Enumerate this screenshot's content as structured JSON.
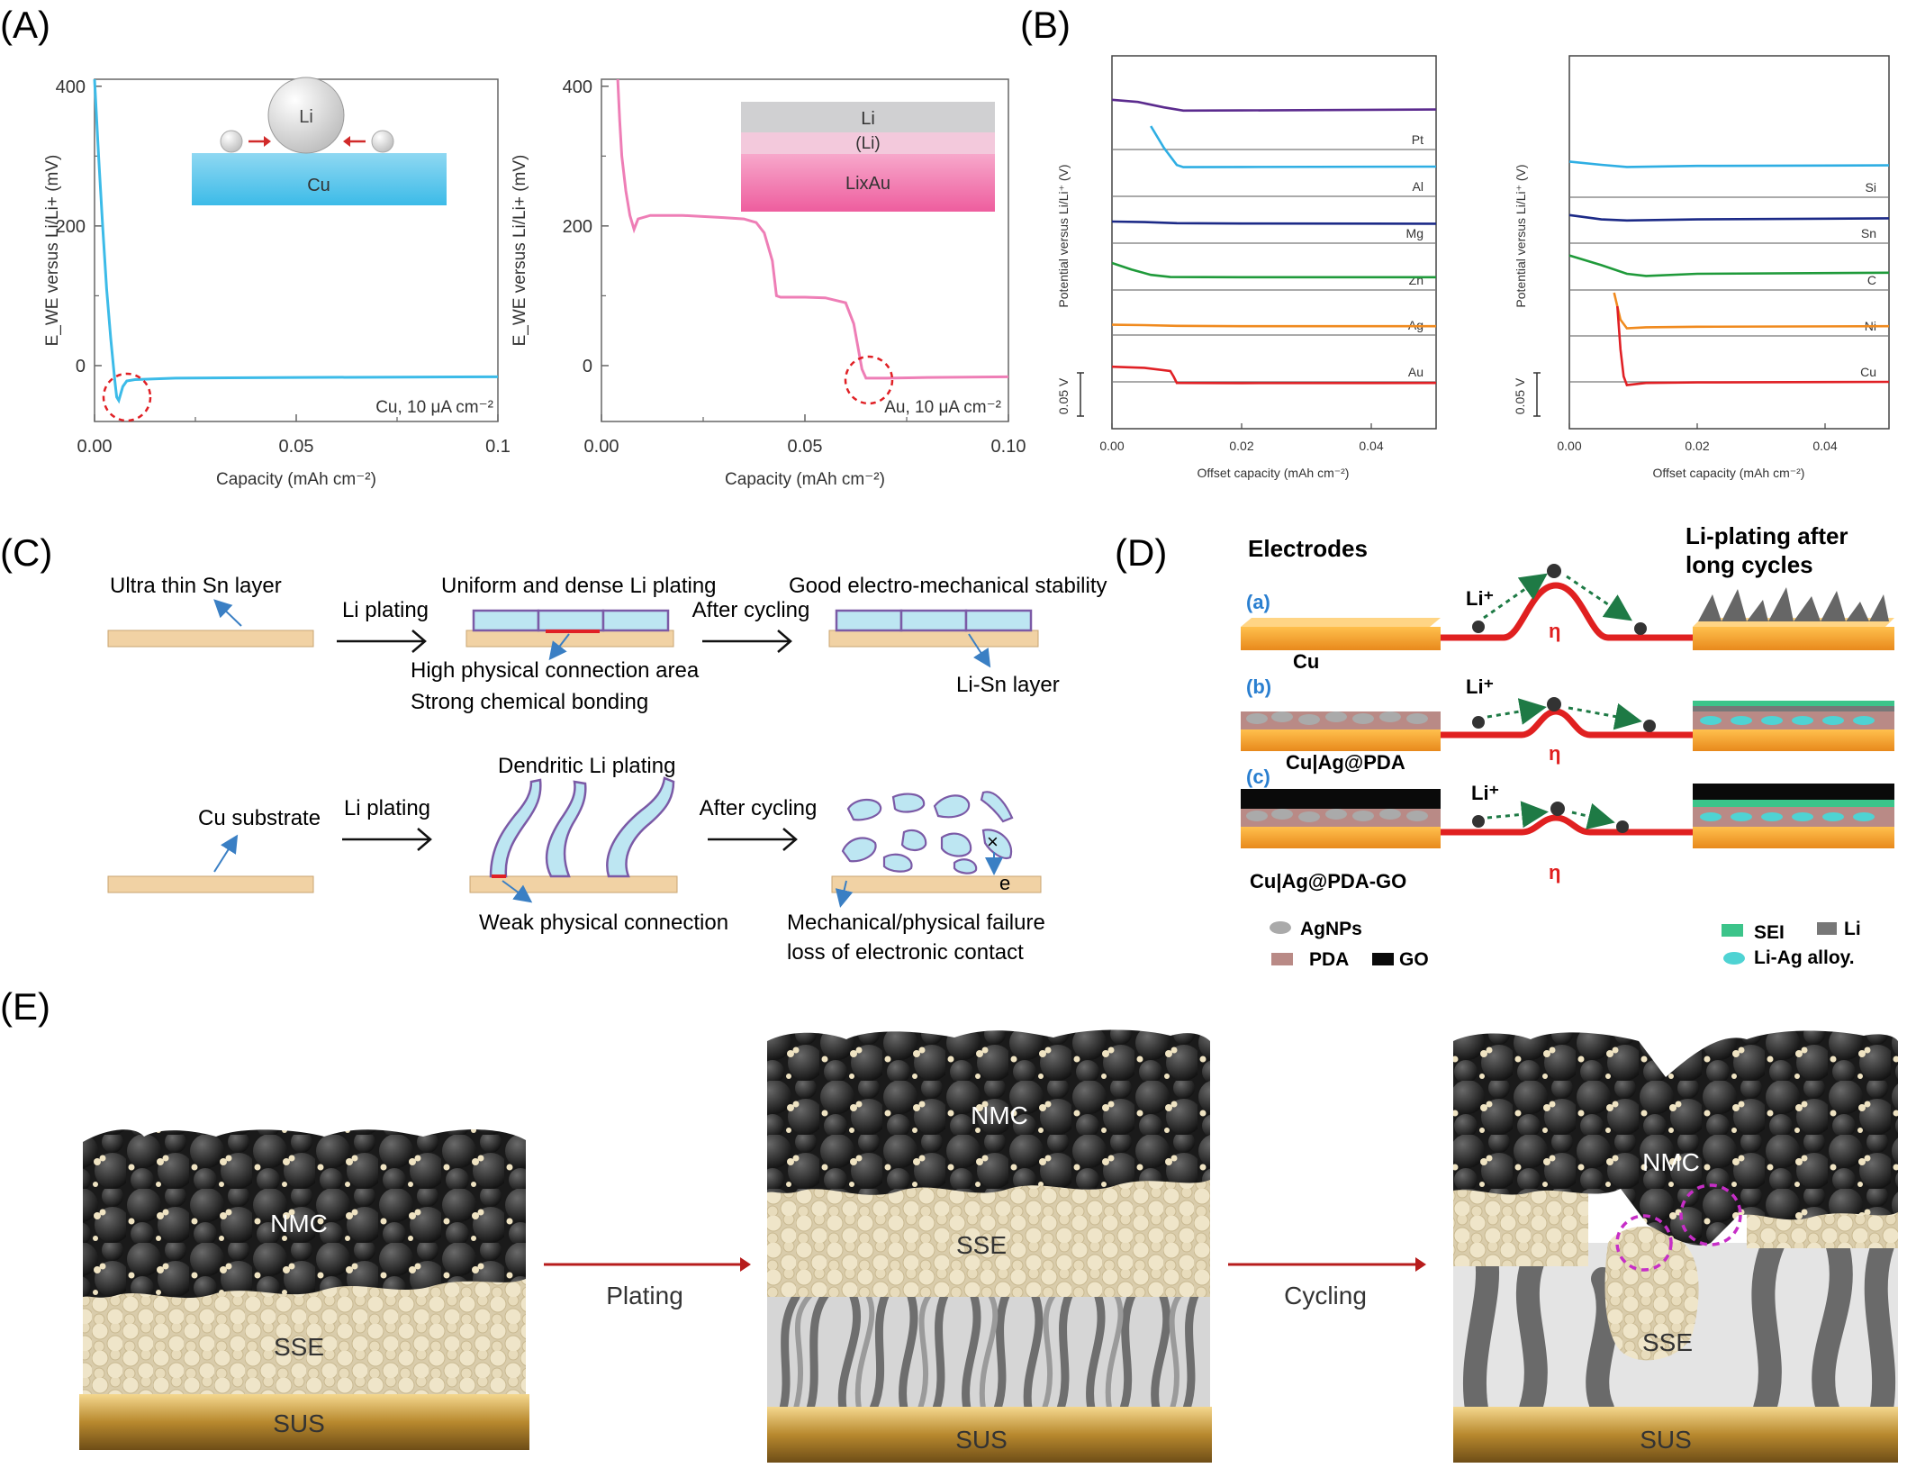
{
  "panels": {
    "A": {
      "label": "(A)",
      "y_axis_label": "E_WE versus Li/Li+ (mV)",
      "x_axis_label": "Capacity (mAh cm⁻²)",
      "left_chart": {
        "annotation": "Cu, 10 μA cm⁻²",
        "inset_top": "Li",
        "inset_bottom": "Cu"
      },
      "right_chart": {
        "annotation": "Au, 10 μA cm⁻²",
        "inset_layers": [
          "Li",
          "(Li)",
          "LixAu"
        ]
      }
    },
    "B": {
      "label": "(B)",
      "y_axis_label": "Potential versus Li/Li⁺ (V)",
      "x_axis_label": "Offset capacity (mAh cm⁻²)",
      "scale_bar": "0.05 V"
    },
    "C": {
      "label": "(C)",
      "top_row": {
        "sn_label": "Ultra thin Sn layer",
        "arrow1": "Li plating",
        "uniform": "Uniform and dense Li plating",
        "contact1": "High physical connection area",
        "contact2": "Strong chemical bonding",
        "arrow2": "After cycling",
        "stability": "Good electro-mechanical stability",
        "lisn": "Li-Sn layer"
      },
      "bottom_row": {
        "cu_label": "Cu substrate",
        "arrow1": "Li plating",
        "dendritic": "Dendritic Li plating",
        "weak": "Weak physical connection",
        "arrow2": "After cycling",
        "failure1": "Mechanical/physical failure",
        "failure2": "loss of electronic contact",
        "e_label": "e"
      }
    },
    "D": {
      "label": "(D)",
      "electrodes_title": "Electrodes",
      "after_title_1": "Li-plating after",
      "after_title_2": "long cycles",
      "rows": [
        {
          "tag": "(a)",
          "name": "Cu",
          "ion": "Li⁺",
          "eta": "η"
        },
        {
          "tag": "(b)",
          "name": "Cu|Ag@PDA",
          "ion": "Li⁺",
          "eta": "η"
        },
        {
          "tag": "(c)",
          "name": "Cu|Ag@PDA-GO",
          "ion": "Li⁺",
          "eta": "η"
        }
      ],
      "legend": {
        "agnps": "AgNPs",
        "pda": "PDA",
        "go": "GO",
        "sei": "SEI",
        "li": "Li",
        "liag": "Li-Ag alloy."
      }
    },
    "E": {
      "label": "(E)",
      "stage1": {
        "nmc": "NMC",
        "sse": "SSE",
        "sus": "SUS"
      },
      "arrow1": "Plating",
      "stage2": {
        "nmc": "NMC",
        "sse": "SSE",
        "sus": "SUS"
      },
      "arrow2": "Cycling",
      "stage3": {
        "nmc": "NMC",
        "sse": "SSE",
        "sus": "SUS"
      }
    }
  },
  "chart_data": [
    {
      "type": "line",
      "panel": "A-left",
      "x_ticks": [
        "0.00",
        "0.05",
        "0.1"
      ],
      "y_ticks": [
        "0",
        "200",
        "400"
      ],
      "xlim": [
        0,
        0.1
      ],
      "ylim": [
        -80,
        410
      ],
      "series": [
        {
          "color": "#3cbbe8",
          "x": [
            0.0,
            0.001,
            0.002,
            0.003,
            0.004,
            0.005,
            0.0055,
            0.006,
            0.007,
            0.008,
            0.01,
            0.02,
            0.05,
            0.1
          ],
          "y": [
            410,
            300,
            200,
            110,
            40,
            -20,
            -45,
            -50,
            -30,
            -22,
            -20,
            -18,
            -17,
            -16
          ]
        }
      ]
    },
    {
      "type": "line",
      "panel": "A-right",
      "x_ticks": [
        "0.00",
        "0.05",
        "0.10"
      ],
      "y_ticks": [
        "0",
        "200",
        "400"
      ],
      "xlim": [
        0,
        0.1
      ],
      "ylim": [
        -80,
        410
      ],
      "series": [
        {
          "color": "#ee7eb6",
          "x": [
            0.004,
            0.0045,
            0.005,
            0.006,
            0.007,
            0.008,
            0.009,
            0.012,
            0.02,
            0.03,
            0.035,
            0.038,
            0.04,
            0.042,
            0.043,
            0.044,
            0.05,
            0.055,
            0.06,
            0.062,
            0.064,
            0.065,
            0.07,
            0.08,
            0.1
          ],
          "y": [
            410,
            350,
            300,
            250,
            215,
            195,
            210,
            215,
            215,
            212,
            210,
            205,
            190,
            150,
            100,
            98,
            98,
            97,
            90,
            60,
            -5,
            -18,
            -18,
            -17,
            -16
          ]
        }
      ]
    },
    {
      "type": "line",
      "panel": "B-left",
      "x_ticks": [
        "0.00",
        "0.02",
        "0.04"
      ],
      "xlim": [
        0,
        0.05
      ],
      "series": [
        {
          "name": "Pt",
          "color": "#5b2b8e",
          "x": [
            0,
            0.004,
            0.008,
            0.011,
            0.02,
            0.05
          ],
          "y": [
            4.6,
            4.4,
            3.9,
            3.6,
            3.62,
            3.7
          ]
        },
        {
          "name": "Al",
          "color": "#2eaee3",
          "x": [
            0.006,
            0.008,
            0.01,
            0.011,
            0.02,
            0.05
          ],
          "y": [
            6.5,
            4.5,
            2.9,
            2.7,
            2.72,
            2.75
          ]
        },
        {
          "name": "Mg",
          "color": "#1c2a87",
          "x": [
            0,
            0.005,
            0.01,
            0.02,
            0.05
          ],
          "y": [
            2.0,
            1.95,
            1.85,
            1.82,
            1.8
          ]
        },
        {
          "name": "Zn",
          "color": "#1f9a3a",
          "x": [
            0,
            0.003,
            0.006,
            0.009,
            0.02,
            0.05
          ],
          "y": [
            2.5,
            1.9,
            1.4,
            1.2,
            1.18,
            1.18
          ]
        },
        {
          "name": "Ag",
          "color": "#f08a1e",
          "x": [
            0,
            0.005,
            0.01,
            0.02,
            0.05
          ],
          "y": [
            0.95,
            0.92,
            0.85,
            0.82,
            0.82
          ]
        },
        {
          "name": "Au",
          "color": "#e02025",
          "x": [
            0,
            0.005,
            0.009,
            0.0095,
            0.01,
            0.02,
            0.05
          ],
          "y": [
            1.4,
            1.3,
            1.0,
            0.5,
            -0.1,
            -0.12,
            -0.1
          ]
        }
      ]
    },
    {
      "type": "line",
      "panel": "B-right",
      "x_ticks": [
        "0.00",
        "0.02",
        "0.04"
      ],
      "xlim": [
        0,
        0.05
      ],
      "series": [
        {
          "name": "Si",
          "color": "#2eaee3",
          "x": [
            0,
            0.005,
            0.009,
            0.02,
            0.05
          ],
          "y": [
            3.3,
            3.0,
            2.8,
            2.9,
            2.95
          ]
        },
        {
          "name": "Sn",
          "color": "#1c2a87",
          "x": [
            0,
            0.005,
            0.009,
            0.02,
            0.05
          ],
          "y": [
            2.6,
            2.2,
            2.1,
            2.2,
            2.3
          ]
        },
        {
          "name": "C",
          "color": "#1f9a3a",
          "x": [
            0,
            0.005,
            0.009,
            0.012,
            0.02,
            0.05
          ],
          "y": [
            3.2,
            2.3,
            1.5,
            1.3,
            1.5,
            1.6
          ]
        },
        {
          "name": "Ni",
          "color": "#f08a1e",
          "x": [
            0.007,
            0.008,
            0.009,
            0.012,
            0.02,
            0.05
          ],
          "y": [
            4.0,
            1.5,
            0.7,
            0.8,
            0.85,
            0.9
          ]
        },
        {
          "name": "Cu",
          "color": "#e02025",
          "x": [
            0.0075,
            0.008,
            0.0085,
            0.009,
            0.012,
            0.02,
            0.05
          ],
          "y": [
            7.0,
            3.0,
            0.5,
            -0.3,
            -0.1,
            -0.05,
            0.0
          ]
        }
      ]
    }
  ]
}
